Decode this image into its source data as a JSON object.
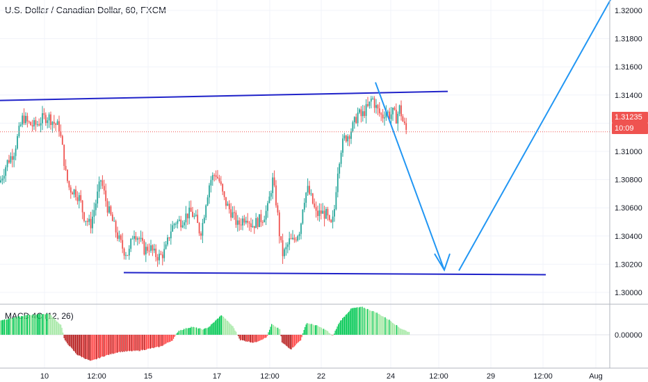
{
  "chart_title": "U.S. Dollar / Canadian Dollar, 60, FXCM",
  "macd_title": "MACD 4C (12, 26)",
  "price_label": "1.31235",
  "countdown_label": "10:09",
  "colors": {
    "up": "#26a69a",
    "down": "#ef5350",
    "trendline": "#1f22c9",
    "projection": "#2196f3",
    "macd_pos_strong": "#00c853",
    "macd_pos_weak": "#a5e8a5",
    "macd_neg_strong": "#b71c1c",
    "macd_neg_weak": "#ff4444"
  },
  "chart_data": {
    "type": "line",
    "title": "U.S. Dollar / Canadian Dollar, 60, FXCM",
    "ylim": [
      1.2992,
      1.3224
    ],
    "y_ticks": [
      "1.32000",
      "1.31800",
      "1.31600",
      "1.31400",
      "1.31200",
      "1.31000",
      "1.30800",
      "1.30600",
      "1.30400",
      "1.30200",
      "1.30000"
    ],
    "x_ticks": [
      "10",
      "12:00",
      "15",
      "17",
      "12:00",
      "22",
      "24",
      "12:00",
      "29",
      "12:00",
      "Aug"
    ],
    "last_price": 1.31235,
    "price_path": [
      [
        0,
        1.3085
      ],
      [
        10,
        1.31
      ],
      [
        20,
        1.3108
      ],
      [
        28,
        1.3125
      ],
      [
        33,
        1.3135
      ],
      [
        40,
        1.313
      ],
      [
        48,
        1.3128
      ],
      [
        55,
        1.313
      ],
      [
        62,
        1.3134
      ],
      [
        70,
        1.3135
      ],
      [
        78,
        1.313
      ],
      [
        85,
        1.3127
      ],
      [
        90,
        1.311
      ],
      [
        95,
        1.309
      ],
      [
        100,
        1.308
      ],
      [
        108,
        1.3078
      ],
      [
        115,
        1.3072
      ],
      [
        120,
        1.306
      ],
      [
        130,
        1.3052
      ],
      [
        138,
        1.307
      ],
      [
        145,
        1.3087
      ],
      [
        150,
        1.3076
      ],
      [
        155,
        1.3065
      ],
      [
        160,
        1.3058
      ],
      [
        165,
        1.305
      ],
      [
        172,
        1.304
      ],
      [
        178,
        1.3033
      ],
      [
        185,
        1.303
      ],
      [
        192,
        1.3048
      ],
      [
        200,
        1.3042
      ],
      [
        208,
        1.3033
      ],
      [
        215,
        1.3036
      ],
      [
        222,
        1.303
      ],
      [
        230,
        1.3028
      ],
      [
        238,
        1.3033
      ],
      [
        245,
        1.3048
      ],
      [
        252,
        1.3055
      ],
      [
        260,
        1.3055
      ],
      [
        268,
        1.306
      ],
      [
        275,
        1.3062
      ],
      [
        282,
        1.3056
      ],
      [
        288,
        1.3046
      ],
      [
        292,
        1.3055
      ],
      [
        296,
        1.307
      ],
      [
        302,
        1.3086
      ],
      [
        310,
        1.3092
      ],
      [
        316,
        1.3085
      ],
      [
        322,
        1.3072
      ],
      [
        328,
        1.3066
      ],
      [
        335,
        1.306
      ],
      [
        342,
        1.3052
      ],
      [
        348,
        1.3056
      ],
      [
        355,
        1.306
      ],
      [
        362,
        1.3052
      ],
      [
        370,
        1.3055
      ],
      [
        378,
        1.3058
      ],
      [
        385,
        1.3065
      ],
      [
        392,
        1.3087
      ],
      [
        398,
        1.3067
      ],
      [
        402,
        1.3045
      ],
      [
        406,
        1.303
      ],
      [
        410,
        1.3032
      ],
      [
        416,
        1.304
      ],
      [
        422,
        1.304
      ],
      [
        428,
        1.3046
      ],
      [
        432,
        1.305
      ],
      [
        436,
        1.307
      ],
      [
        442,
        1.308
      ],
      [
        448,
        1.3072
      ],
      [
        455,
        1.306
      ],
      [
        462,
        1.3062
      ],
      [
        470,
        1.306
      ],
      [
        475,
        1.305
      ],
      [
        480,
        1.3058
      ],
      [
        485,
        1.3092
      ],
      [
        490,
        1.311
      ],
      [
        495,
        1.3118
      ],
      [
        502,
        1.3122
      ],
      [
        508,
        1.3128
      ],
      [
        515,
        1.3138
      ],
      [
        520,
        1.3135
      ],
      [
        525,
        1.314
      ],
      [
        530,
        1.3142
      ],
      [
        535,
        1.315
      ],
      [
        540,
        1.3143
      ],
      [
        545,
        1.3138
      ],
      [
        550,
        1.3135
      ],
      [
        555,
        1.314
      ],
      [
        560,
        1.3136
      ],
      [
        565,
        1.3138
      ],
      [
        570,
        1.3134
      ],
      [
        575,
        1.3142
      ],
      [
        580,
        1.313
      ],
      [
        585,
        1.31235
      ]
    ],
    "resistance_line": [
      [
        0,
        1.31474
      ],
      [
        644,
        1.31543
      ]
    ],
    "support_line": [
      [
        178,
        1.30161
      ],
      [
        785,
        1.30145
      ]
    ],
    "projection_down": [
      [
        540,
        1.31612
      ],
      [
        639,
        1.30181
      ]
    ],
    "projection_up": [
      [
        660,
        1.30176
      ],
      [
        880,
        1.3226
      ]
    ],
    "arrow_head": [
      [
        625,
        1.30305
      ],
      [
        639,
        1.30181
      ],
      [
        647,
        1.30305
      ]
    ],
    "macd_label": "0.00000",
    "macd_histogram": [
      [
        0,
        0.55
      ],
      [
        40,
        0.75
      ],
      [
        70,
        0.8
      ],
      [
        88,
        0.35
      ],
      [
        92,
        -0.2
      ],
      [
        110,
        -0.75
      ],
      [
        130,
        -1.0
      ],
      [
        150,
        -0.8
      ],
      [
        170,
        -0.65
      ],
      [
        200,
        -0.6
      ],
      [
        230,
        -0.45
      ],
      [
        248,
        -0.2
      ],
      [
        256,
        0.15
      ],
      [
        275,
        0.3
      ],
      [
        292,
        0.2
      ],
      [
        300,
        0.3
      ],
      [
        318,
        0.75
      ],
      [
        335,
        0.3
      ],
      [
        345,
        -0.2
      ],
      [
        365,
        -0.3
      ],
      [
        383,
        -0.1
      ],
      [
        390,
        0.4
      ],
      [
        402,
        0.2
      ],
      [
        405,
        -0.3
      ],
      [
        418,
        -0.55
      ],
      [
        432,
        -0.2
      ],
      [
        440,
        0.45
      ],
      [
        455,
        0.35
      ],
      [
        470,
        0.15
      ],
      [
        478,
        -0.05
      ],
      [
        488,
        0.5
      ],
      [
        505,
        1.0
      ],
      [
        520,
        1.05
      ],
      [
        540,
        0.85
      ],
      [
        560,
        0.55
      ],
      [
        575,
        0.25
      ],
      [
        588,
        0.1
      ]
    ]
  }
}
